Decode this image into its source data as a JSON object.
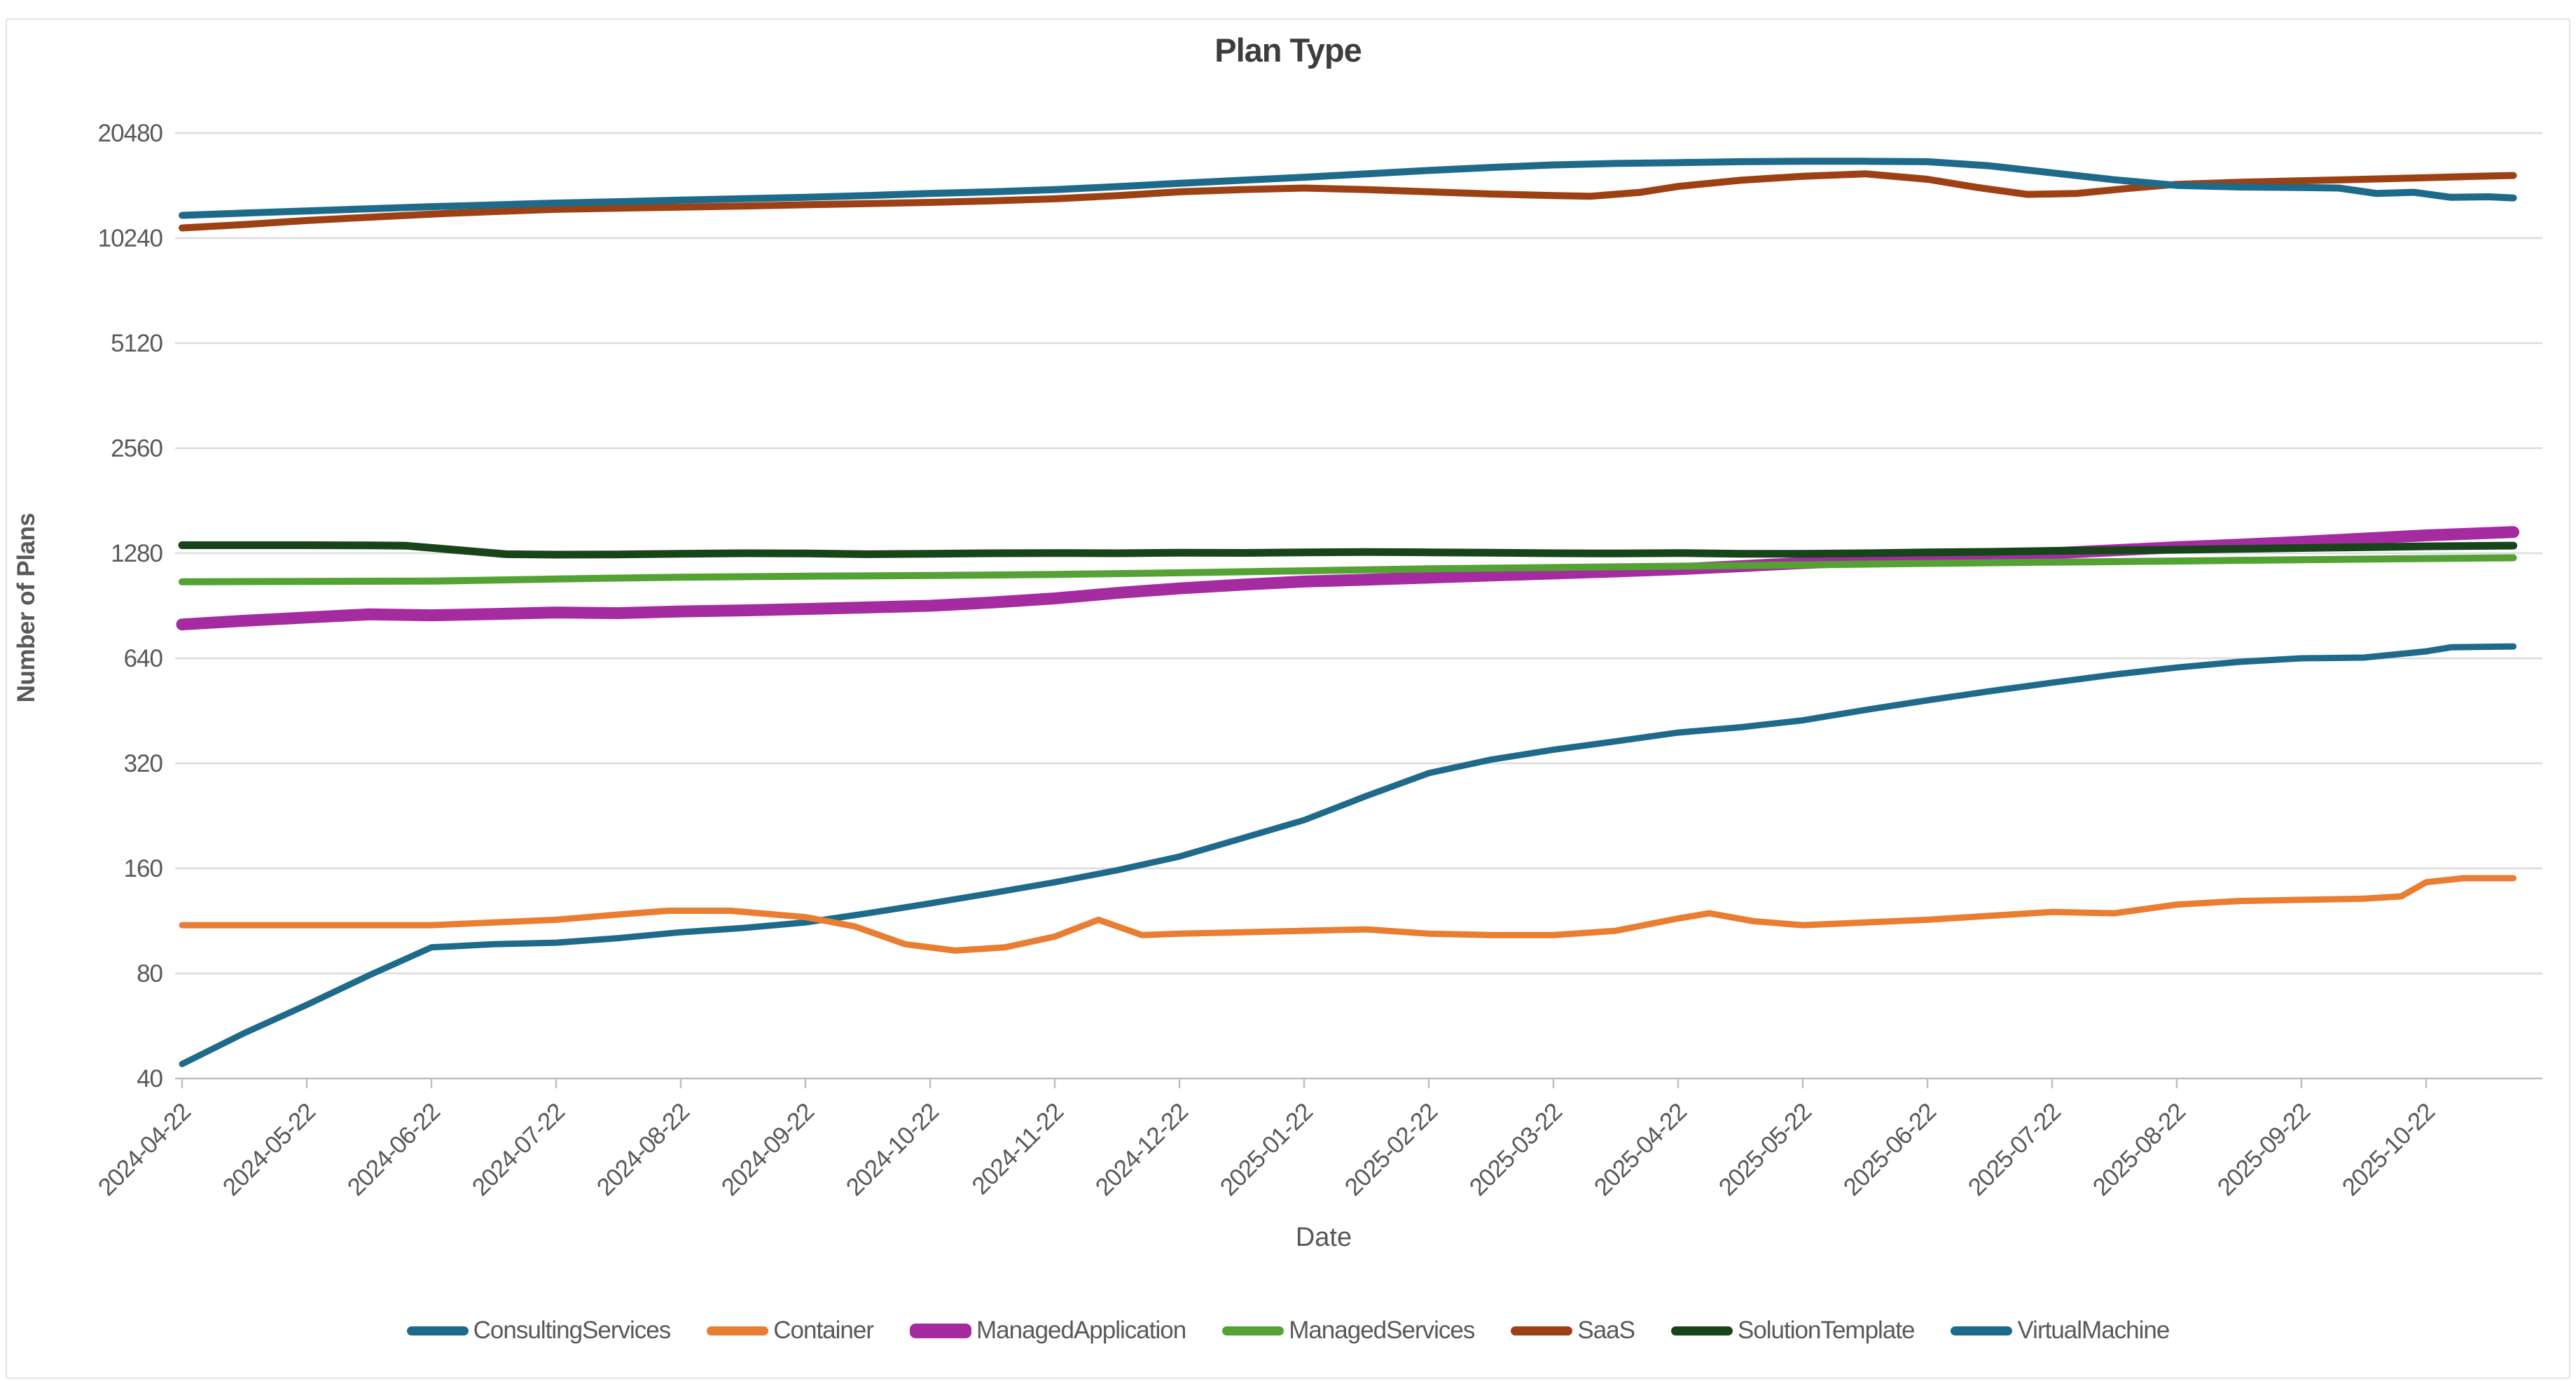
{
  "title": "Plan Type",
  "colors": {
    "grid": "#DCDCDC",
    "axis_line": "#BFBFBF",
    "tick_text": "#595959",
    "title_text": "#3D3D3D",
    "consulting_services": "#1E6A8A",
    "container": "#E97D32",
    "managed_application": "#A52CA0",
    "managed_services": "#53A233",
    "saas": "#9D4115",
    "solution_template": "#17441B",
    "virtual_machine": "#1E6A8A"
  },
  "chart_data": {
    "type": "line",
    "title": "Plan Type",
    "xlabel": "Date",
    "ylabel": "Number of Plans",
    "y_scale": "log2",
    "ylim": [
      40,
      20480
    ],
    "grid": "horizontal-only",
    "legend_position": "bottom",
    "y_ticks": [
      40,
      80,
      160,
      320,
      640,
      1280,
      2560,
      5120,
      10240,
      20480
    ],
    "x_tick_labels": [
      "2024-04-22",
      "2024-05-22",
      "2024-06-22",
      "2024-07-22",
      "2024-08-22",
      "2024-09-22",
      "2024-10-22",
      "2024-11-22",
      "2024-12-22",
      "2025-01-22",
      "2025-02-22",
      "2025-03-22",
      "2025-04-22",
      "2025-05-22",
      "2025-06-22",
      "2025-07-22",
      "2025-08-22",
      "2025-09-22",
      "2025-10-22"
    ],
    "x_unit": "months since 2024-04-22; data extends ~0.7 month past last tick",
    "series": [
      {
        "name": "ConsultingServices",
        "color": "#1E6A8A",
        "stroke_width": 9,
        "points": [
          [
            0,
            44
          ],
          [
            0.5,
            54
          ],
          [
            1,
            65
          ],
          [
            1.5,
            79
          ],
          [
            2,
            95
          ],
          [
            2.5,
            97
          ],
          [
            3,
            98
          ],
          [
            3.5,
            101
          ],
          [
            4,
            105
          ],
          [
            4.5,
            108
          ],
          [
            5,
            112
          ],
          [
            5.5,
            119
          ],
          [
            6,
            127
          ],
          [
            6.5,
            136
          ],
          [
            7,
            146
          ],
          [
            7.5,
            158
          ],
          [
            8,
            173
          ],
          [
            8.5,
            195
          ],
          [
            9,
            220
          ],
          [
            9.5,
            258
          ],
          [
            10,
            300
          ],
          [
            10.5,
            328
          ],
          [
            11,
            350
          ],
          [
            11.5,
            370
          ],
          [
            12,
            392
          ],
          [
            12.5,
            406
          ],
          [
            13,
            425
          ],
          [
            13.5,
            455
          ],
          [
            14,
            485
          ],
          [
            14.5,
            515
          ],
          [
            15,
            545
          ],
          [
            15.5,
            575
          ],
          [
            16,
            602
          ],
          [
            16.5,
            625
          ],
          [
            17,
            640
          ],
          [
            17.5,
            643
          ],
          [
            18,
            670
          ],
          [
            18.2,
            688
          ],
          [
            18.7,
            692
          ]
        ]
      },
      {
        "name": "Container",
        "color": "#E97D32",
        "stroke_width": 9,
        "points": [
          [
            0,
            110
          ],
          [
            0.5,
            110
          ],
          [
            1,
            110
          ],
          [
            1.5,
            110
          ],
          [
            2,
            110
          ],
          [
            2.5,
            112
          ],
          [
            3,
            114
          ],
          [
            3.5,
            118
          ],
          [
            3.9,
            121
          ],
          [
            4.4,
            121
          ],
          [
            5,
            116
          ],
          [
            5.4,
            109
          ],
          [
            5.8,
            97
          ],
          [
            6.2,
            93
          ],
          [
            6.6,
            95
          ],
          [
            7,
            102
          ],
          [
            7.35,
            114
          ],
          [
            7.7,
            103
          ],
          [
            8,
            104
          ],
          [
            8.5,
            105
          ],
          [
            9,
            106
          ],
          [
            9.5,
            107
          ],
          [
            10,
            104
          ],
          [
            10.5,
            103
          ],
          [
            11,
            103
          ],
          [
            11.5,
            106
          ],
          [
            12,
            115
          ],
          [
            12.25,
            119
          ],
          [
            12.6,
            113
          ],
          [
            13,
            110
          ],
          [
            13.5,
            112
          ],
          [
            14,
            114
          ],
          [
            14.5,
            117
          ],
          [
            15,
            120
          ],
          [
            15.5,
            119
          ],
          [
            16,
            126
          ],
          [
            16.5,
            129
          ],
          [
            17,
            130
          ],
          [
            17.5,
            131
          ],
          [
            17.8,
            133
          ],
          [
            18,
            146
          ],
          [
            18.3,
            150
          ],
          [
            18.7,
            150
          ]
        ]
      },
      {
        "name": "ManagedApplication",
        "color": "#A52CA0",
        "stroke_width": 17,
        "points": [
          [
            0,
            800
          ],
          [
            0.5,
            820
          ],
          [
            1,
            838
          ],
          [
            1.5,
            855
          ],
          [
            2,
            850
          ],
          [
            2.5,
            857
          ],
          [
            3,
            866
          ],
          [
            3.5,
            862
          ],
          [
            4,
            872
          ],
          [
            4.5,
            878
          ],
          [
            5,
            886
          ],
          [
            5.5,
            895
          ],
          [
            6,
            905
          ],
          [
            6.5,
            925
          ],
          [
            7,
            950
          ],
          [
            7.5,
            985
          ],
          [
            8,
            1015
          ],
          [
            8.5,
            1040
          ],
          [
            9,
            1062
          ],
          [
            9.5,
            1075
          ],
          [
            10,
            1090
          ],
          [
            10.5,
            1105
          ],
          [
            11,
            1120
          ],
          [
            11.5,
            1135
          ],
          [
            12,
            1152
          ],
          [
            12.5,
            1175
          ],
          [
            13,
            1200
          ],
          [
            13.5,
            1220
          ],
          [
            14,
            1240
          ],
          [
            14.5,
            1260
          ],
          [
            15,
            1280
          ],
          [
            15.5,
            1305
          ],
          [
            16,
            1332
          ],
          [
            16.5,
            1355
          ],
          [
            17,
            1380
          ],
          [
            17.5,
            1410
          ],
          [
            18,
            1440
          ],
          [
            18.7,
            1472
          ]
        ]
      },
      {
        "name": "ManagedServices",
        "color": "#53A233",
        "stroke_width": 10,
        "points": [
          [
            0,
            1060
          ],
          [
            1,
            1063
          ],
          [
            2,
            1065
          ],
          [
            3,
            1080
          ],
          [
            4,
            1093
          ],
          [
            5,
            1100
          ],
          [
            6,
            1105
          ],
          [
            7,
            1113
          ],
          [
            8,
            1125
          ],
          [
            9,
            1140
          ],
          [
            10,
            1155
          ],
          [
            11,
            1165
          ],
          [
            12,
            1175
          ],
          [
            13,
            1185
          ],
          [
            14,
            1197
          ],
          [
            15,
            1207
          ],
          [
            16,
            1216
          ],
          [
            17,
            1226
          ],
          [
            18,
            1236
          ],
          [
            18.7,
            1242
          ]
        ]
      },
      {
        "name": "SaaS",
        "color": "#9D4115",
        "stroke_width": 10,
        "points": [
          [
            0,
            10950
          ],
          [
            0.5,
            11200
          ],
          [
            1,
            11500
          ],
          [
            1.5,
            11750
          ],
          [
            2,
            12000
          ],
          [
            2.5,
            12200
          ],
          [
            3,
            12380
          ],
          [
            3.5,
            12480
          ],
          [
            4,
            12560
          ],
          [
            4.5,
            12650
          ],
          [
            5,
            12760
          ],
          [
            5.5,
            12860
          ],
          [
            6,
            12960
          ],
          [
            6.5,
            13100
          ],
          [
            7,
            13270
          ],
          [
            7.5,
            13550
          ],
          [
            8,
            13900
          ],
          [
            8.5,
            14100
          ],
          [
            9,
            14250
          ],
          [
            9.5,
            14100
          ],
          [
            10,
            13900
          ],
          [
            10.5,
            13700
          ],
          [
            11,
            13560
          ],
          [
            11.3,
            13500
          ],
          [
            11.7,
            13850
          ],
          [
            12,
            14400
          ],
          [
            12.5,
            15000
          ],
          [
            13,
            15400
          ],
          [
            13.5,
            15650
          ],
          [
            14,
            15100
          ],
          [
            14.4,
            14300
          ],
          [
            14.8,
            13660
          ],
          [
            15.2,
            13750
          ],
          [
            15.6,
            14200
          ],
          [
            16,
            14600
          ],
          [
            16.5,
            14800
          ],
          [
            17,
            14950
          ],
          [
            17.5,
            15100
          ],
          [
            18,
            15250
          ],
          [
            18.4,
            15400
          ],
          [
            18.7,
            15480
          ]
        ]
      },
      {
        "name": "SolutionTemplate",
        "color": "#17441B",
        "stroke_width": 11,
        "points": [
          [
            0,
            1350
          ],
          [
            0.5,
            1350
          ],
          [
            1,
            1350
          ],
          [
            1.5,
            1348
          ],
          [
            1.8,
            1345
          ],
          [
            2.6,
            1272
          ],
          [
            3,
            1268
          ],
          [
            3.5,
            1270
          ],
          [
            4,
            1275
          ],
          [
            4.5,
            1280
          ],
          [
            5,
            1278
          ],
          [
            5.5,
            1272
          ],
          [
            6,
            1276
          ],
          [
            6.5,
            1280
          ],
          [
            7,
            1282
          ],
          [
            7.5,
            1280
          ],
          [
            8,
            1285
          ],
          [
            8.5,
            1283
          ],
          [
            9,
            1287
          ],
          [
            9.5,
            1290
          ],
          [
            10,
            1288
          ],
          [
            10.5,
            1284
          ],
          [
            11,
            1280
          ],
          [
            11.5,
            1278
          ],
          [
            12,
            1282
          ],
          [
            12.5,
            1276
          ],
          [
            13,
            1276
          ],
          [
            13.5,
            1280
          ],
          [
            14,
            1287
          ],
          [
            14.5,
            1292
          ],
          [
            15,
            1300
          ],
          [
            15.5,
            1305
          ],
          [
            16,
            1310
          ],
          [
            16.5,
            1318
          ],
          [
            17,
            1325
          ],
          [
            17.5,
            1332
          ],
          [
            18,
            1340
          ],
          [
            18.7,
            1346
          ]
        ]
      },
      {
        "name": "VirtualMachine",
        "color": "#1E6A8A",
        "stroke_width": 10,
        "points": [
          [
            0,
            11900
          ],
          [
            0.5,
            12080
          ],
          [
            1,
            12250
          ],
          [
            1.5,
            12430
          ],
          [
            2,
            12600
          ],
          [
            2.5,
            12750
          ],
          [
            3,
            12900
          ],
          [
            3.5,
            13020
          ],
          [
            4,
            13160
          ],
          [
            4.5,
            13280
          ],
          [
            5,
            13400
          ],
          [
            5.5,
            13560
          ],
          [
            6,
            13750
          ],
          [
            6.5,
            13900
          ],
          [
            7,
            14100
          ],
          [
            7.5,
            14380
          ],
          [
            8,
            14700
          ],
          [
            8.5,
            15000
          ],
          [
            9,
            15300
          ],
          [
            9.5,
            15650
          ],
          [
            10,
            16000
          ],
          [
            10.5,
            16320
          ],
          [
            11,
            16600
          ],
          [
            11.5,
            16760
          ],
          [
            12,
            16850
          ],
          [
            12.5,
            16950
          ],
          [
            13,
            17000
          ],
          [
            13.5,
            17000
          ],
          [
            14,
            16950
          ],
          [
            14.5,
            16500
          ],
          [
            15,
            15750
          ],
          [
            15.5,
            15050
          ],
          [
            16,
            14500
          ],
          [
            16.5,
            14350
          ],
          [
            17,
            14300
          ],
          [
            17.3,
            14250
          ],
          [
            17.6,
            13750
          ],
          [
            17.9,
            13850
          ],
          [
            18.2,
            13400
          ],
          [
            18.5,
            13450
          ],
          [
            18.7,
            13350
          ]
        ]
      }
    ]
  }
}
